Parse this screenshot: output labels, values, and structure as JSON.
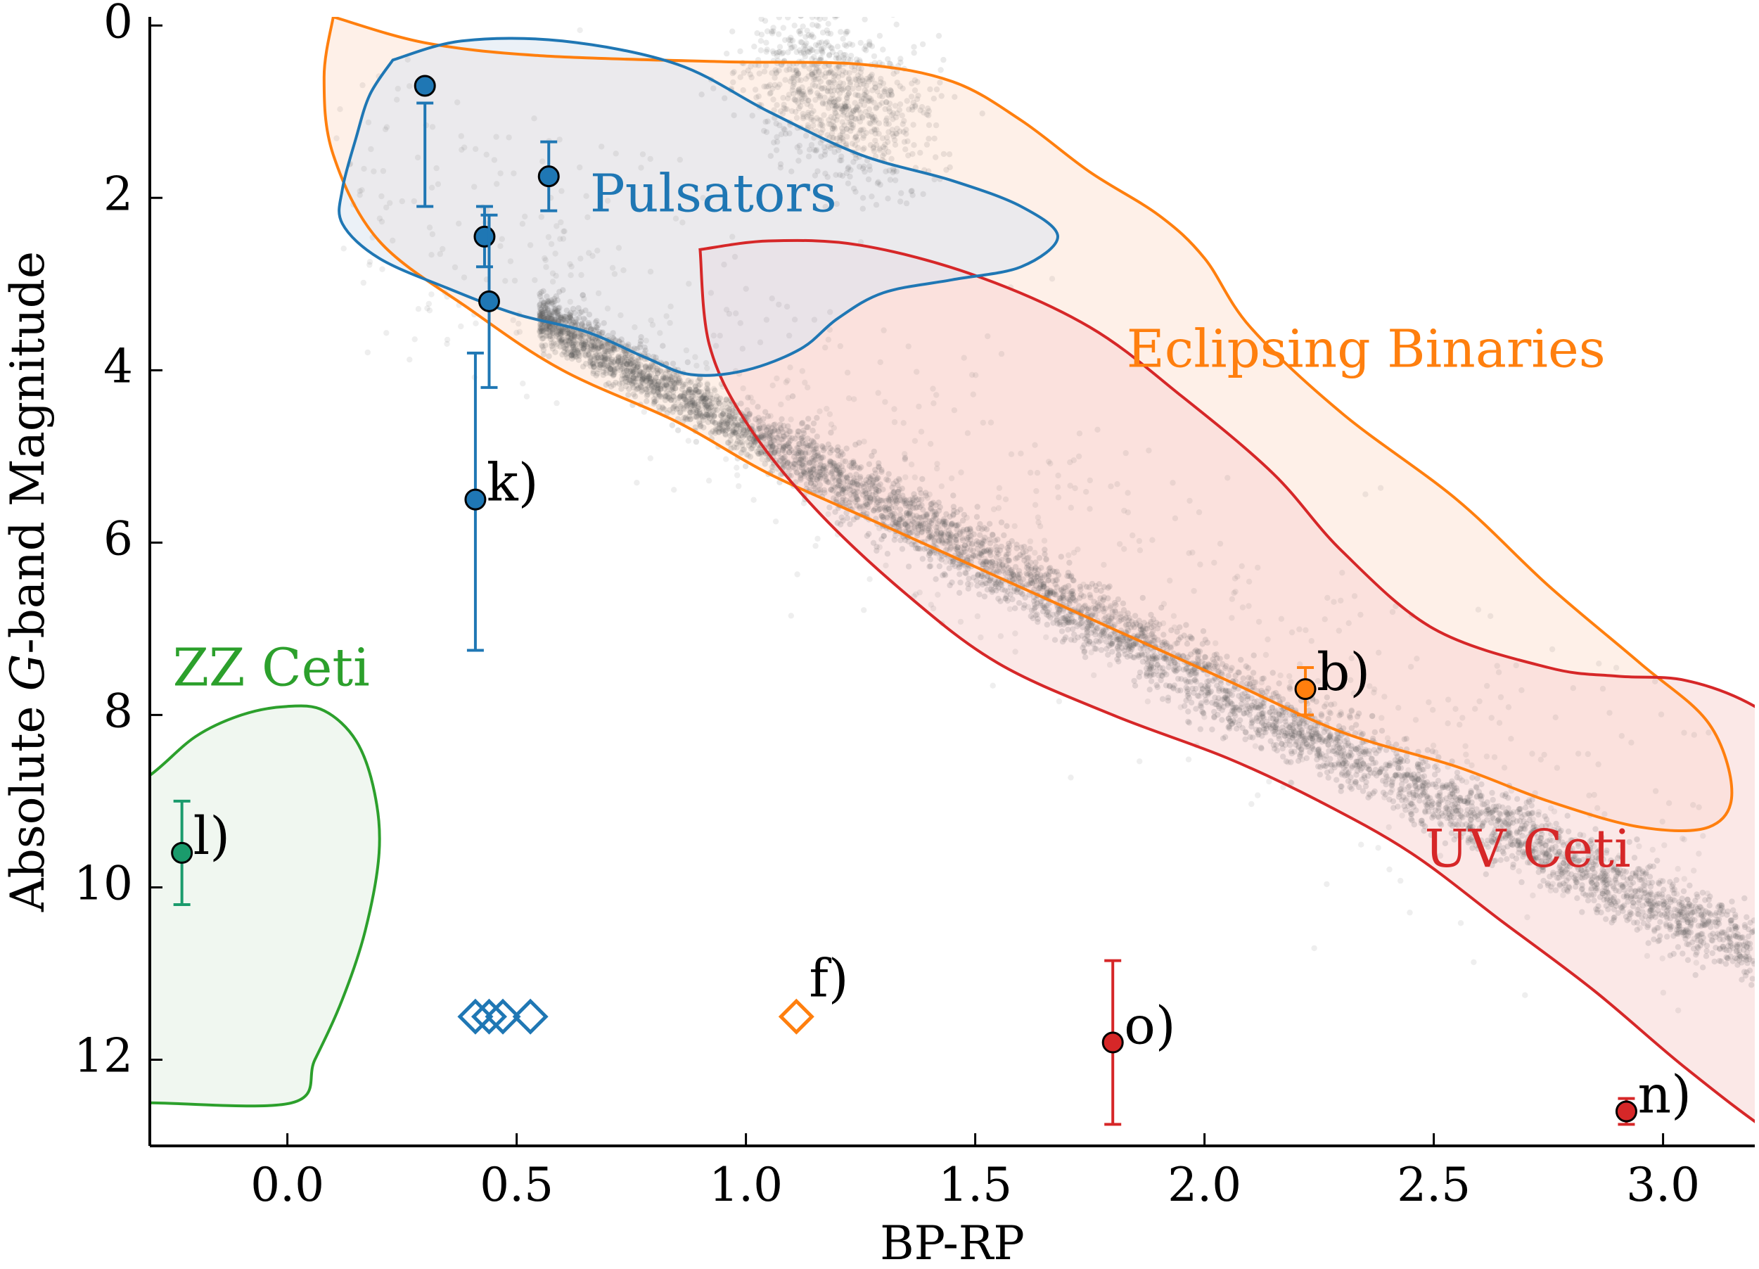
{
  "chart_data": {
    "type": "scatter",
    "xlabel": "BP-RP",
    "ylabel_parts": [
      "Absolute ",
      "G",
      "-band Magnitude"
    ],
    "xlim": [
      -0.3,
      3.2
    ],
    "ylim": [
      13.0,
      -0.1
    ],
    "y_inverted": true,
    "grid": false,
    "x_ticks": [
      0.0,
      0.5,
      1.0,
      1.5,
      2.0,
      2.5,
      3.0
    ],
    "x_tick_labels": [
      "0.0",
      "0.5",
      "1.0",
      "1.5",
      "2.0",
      "2.5",
      "3.0"
    ],
    "y_ticks": [
      0,
      2,
      4,
      6,
      8,
      10,
      12
    ],
    "y_tick_labels": [
      "0",
      "2",
      "4",
      "6",
      "8",
      "10",
      "12"
    ],
    "background_population": {
      "description": "gray background stars",
      "color": "#555555"
    },
    "regions": [
      {
        "name": "Eclipsing Binaries",
        "color": "#ff7f0e",
        "fill": "#fde3d6",
        "label_at": [
          1.83,
          3.8
        ],
        "outline": [
          [
            0.1,
            -0.1
          ],
          [
            0.3,
            0.2
          ],
          [
            0.55,
            0.35
          ],
          [
            0.95,
            0.42
          ],
          [
            1.25,
            0.45
          ],
          [
            1.45,
            0.65
          ],
          [
            1.6,
            1.1
          ],
          [
            1.75,
            1.7
          ],
          [
            1.9,
            2.2
          ],
          [
            2.0,
            2.7
          ],
          [
            2.1,
            3.5
          ],
          [
            2.3,
            4.5
          ],
          [
            2.55,
            5.5
          ],
          [
            2.75,
            6.5
          ],
          [
            2.95,
            7.4
          ],
          [
            3.1,
            8.1
          ],
          [
            3.15,
            8.9
          ],
          [
            3.1,
            9.3
          ],
          [
            2.95,
            9.3
          ],
          [
            2.75,
            9.0
          ],
          [
            2.55,
            8.6
          ],
          [
            2.3,
            8.2
          ],
          [
            2.05,
            7.6
          ],
          [
            1.8,
            7.0
          ],
          [
            1.55,
            6.4
          ],
          [
            1.3,
            5.8
          ],
          [
            1.05,
            5.2
          ],
          [
            0.85,
            4.6
          ],
          [
            0.6,
            4.0
          ],
          [
            0.4,
            3.3
          ],
          [
            0.2,
            2.5
          ],
          [
            0.1,
            1.5
          ],
          [
            0.08,
            0.6
          ],
          [
            0.1,
            -0.1
          ]
        ]
      },
      {
        "name": "UV Ceti",
        "color": "#d62728",
        "fill": "#f8d6d4",
        "label_at": [
          2.48,
          9.6
        ],
        "outline": [
          [
            0.9,
            2.6
          ],
          [
            1.05,
            2.5
          ],
          [
            1.25,
            2.55
          ],
          [
            1.5,
            2.9
          ],
          [
            1.75,
            3.5
          ],
          [
            1.95,
            4.3
          ],
          [
            2.15,
            5.2
          ],
          [
            2.3,
            6.1
          ],
          [
            2.5,
            7.0
          ],
          [
            2.75,
            7.45
          ],
          [
            2.9,
            7.55
          ],
          [
            3.05,
            7.6
          ],
          [
            3.2,
            7.9
          ],
          [
            3.35,
            8.5
          ],
          [
            3.5,
            9.2
          ],
          [
            3.65,
            9.8
          ],
          [
            3.7,
            10.1
          ],
          [
            3.7,
            13.5
          ],
          [
            3.45,
            13.5
          ],
          [
            3.25,
            12.9
          ],
          [
            3.05,
            12.1
          ],
          [
            2.85,
            11.2
          ],
          [
            2.65,
            10.4
          ],
          [
            2.45,
            9.6
          ],
          [
            2.25,
            9.0
          ],
          [
            2.05,
            8.5
          ],
          [
            1.8,
            8.0
          ],
          [
            1.55,
            7.4
          ],
          [
            1.35,
            6.6
          ],
          [
            1.15,
            5.6
          ],
          [
            1.0,
            4.6
          ],
          [
            0.92,
            3.7
          ],
          [
            0.9,
            2.6
          ]
        ]
      },
      {
        "name": "Pulsators",
        "color": "#1f77b4",
        "fill": "#dbe6f0",
        "label_at": [
          0.66,
          2.0
        ],
        "outline": [
          [
            0.23,
            0.4
          ],
          [
            0.38,
            0.18
          ],
          [
            0.6,
            0.18
          ],
          [
            0.85,
            0.45
          ],
          [
            1.05,
            1.0
          ],
          [
            1.25,
            1.5
          ],
          [
            1.45,
            1.8
          ],
          [
            1.6,
            2.1
          ],
          [
            1.68,
            2.45
          ],
          [
            1.6,
            2.8
          ],
          [
            1.45,
            2.95
          ],
          [
            1.3,
            3.1
          ],
          [
            1.2,
            3.4
          ],
          [
            1.12,
            3.75
          ],
          [
            1.0,
            4.0
          ],
          [
            0.88,
            4.05
          ],
          [
            0.78,
            3.85
          ],
          [
            0.65,
            3.55
          ],
          [
            0.5,
            3.35
          ],
          [
            0.35,
            3.05
          ],
          [
            0.2,
            2.7
          ],
          [
            0.12,
            2.3
          ],
          [
            0.12,
            1.9
          ],
          [
            0.15,
            1.3
          ],
          [
            0.18,
            0.8
          ],
          [
            0.23,
            0.4
          ]
        ]
      },
      {
        "name": "ZZ Ceti",
        "color": "#2ca02c",
        "fill": "#e4f1e3",
        "label_at": [
          -0.25,
          7.5
        ],
        "outline": [
          [
            -0.4,
            9.0
          ],
          [
            -0.3,
            8.7
          ],
          [
            -0.2,
            8.25
          ],
          [
            -0.1,
            8.0
          ],
          [
            0.0,
            7.9
          ],
          [
            0.08,
            7.95
          ],
          [
            0.15,
            8.3
          ],
          [
            0.19,
            8.9
          ],
          [
            0.2,
            9.6
          ],
          [
            0.17,
            10.5
          ],
          [
            0.12,
            11.3
          ],
          [
            0.06,
            12.0
          ],
          [
            0.01,
            12.5
          ],
          [
            -0.3,
            12.5
          ],
          [
            -0.4,
            12.5
          ],
          [
            -0.4,
            9.0
          ]
        ]
      }
    ],
    "points": [
      {
        "label": "",
        "x": 0.3,
        "y": 0.7,
        "yerr_low": 0.9,
        "yerr_high": 2.1,
        "color": "#1f77b4",
        "marker": "circle"
      },
      {
        "label": "",
        "x": 0.57,
        "y": 1.75,
        "yerr_low": 1.35,
        "yerr_high": 2.15,
        "color": "#1f77b4",
        "marker": "circle"
      },
      {
        "label": "",
        "x": 0.43,
        "y": 2.45,
        "yerr_low": 2.1,
        "yerr_high": 2.8,
        "color": "#1f77b4",
        "marker": "circle"
      },
      {
        "label": "",
        "x": 0.44,
        "y": 3.2,
        "yerr_low": 2.2,
        "yerr_high": 4.2,
        "color": "#1f77b4",
        "marker": "circle"
      },
      {
        "label": "k)",
        "x": 0.41,
        "y": 5.5,
        "yerr_low": 3.8,
        "yerr_high": 7.25,
        "color": "#1f77b4",
        "marker": "circle"
      },
      {
        "label": "l)",
        "x": -0.23,
        "y": 9.6,
        "yerr_low": 9.0,
        "yerr_high": 10.2,
        "color": "#1a9b6c",
        "marker": "circle"
      },
      {
        "label": "b)",
        "x": 2.22,
        "y": 7.7,
        "yerr_low": 7.45,
        "yerr_high": 8.0,
        "color": "#ff7f0e",
        "marker": "circle"
      },
      {
        "label": "o)",
        "x": 1.8,
        "y": 11.8,
        "yerr_low": 10.85,
        "yerr_high": 12.75,
        "color": "#d62728",
        "marker": "circle"
      },
      {
        "label": "n)",
        "x": 2.92,
        "y": 12.6,
        "yerr_low": 12.45,
        "yerr_high": 12.75,
        "color": "#d62728",
        "marker": "circle"
      },
      {
        "label": "",
        "x": 0.41,
        "y": 11.5,
        "color": "#1f77b4",
        "marker": "diamond-open"
      },
      {
        "label": "",
        "x": 0.44,
        "y": 11.5,
        "color": "#1f77b4",
        "marker": "diamond-open"
      },
      {
        "label": "",
        "x": 0.47,
        "y": 11.5,
        "color": "#1f77b4",
        "marker": "diamond-open"
      },
      {
        "label": "",
        "x": 0.53,
        "y": 11.5,
        "color": "#1f77b4",
        "marker": "diamond-open"
      },
      {
        "label": "f)",
        "x": 1.11,
        "y": 11.5,
        "color": "#ff7f0e",
        "marker": "diamond-open"
      }
    ]
  }
}
